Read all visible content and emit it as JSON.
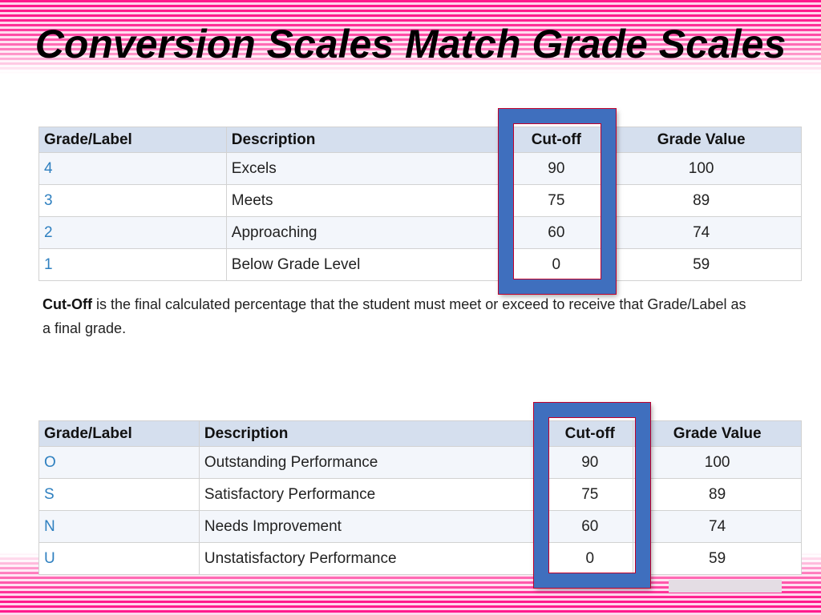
{
  "title": "Conversion Scales Match Grade Scales",
  "table1": {
    "headers": [
      "Grade/Label",
      "Description",
      "Cut-off",
      "Grade Value"
    ],
    "rows": [
      {
        "label": "4",
        "description": "Excels",
        "cutoff": "90",
        "value": "100"
      },
      {
        "label": "3",
        "description": "Meets",
        "cutoff": "75",
        "value": "89"
      },
      {
        "label": "2",
        "description": "Approaching",
        "cutoff": "60",
        "value": "74"
      },
      {
        "label": "1",
        "description": "Below Grade Level",
        "cutoff": "0",
        "value": "59"
      }
    ]
  },
  "note": {
    "term": "Cut-Off",
    "text": " is the final calculated percentage that the student must meet or exceed to receive that Grade/Label as a final grade."
  },
  "table2": {
    "headers": [
      "Grade/Label",
      "Description",
      "Cut-off",
      "Grade Value"
    ],
    "rows": [
      {
        "label": "O",
        "description": "Outstanding Performance",
        "cutoff": "90",
        "value": "100"
      },
      {
        "label": "S",
        "description": "Satisfactory Performance",
        "cutoff": "75",
        "value": "89"
      },
      {
        "label": "N",
        "description": "Needs Improvement",
        "cutoff": "60",
        "value": "74"
      },
      {
        "label": "U",
        "description": "Unstatisfactory Performance",
        "cutoff": "0",
        "value": "59"
      }
    ]
  },
  "colors": {
    "accent": "#ff1a8c",
    "highlight_box": "#3f6fbe",
    "header_bg": "#d5dfee",
    "link": "#2f80c0"
  }
}
